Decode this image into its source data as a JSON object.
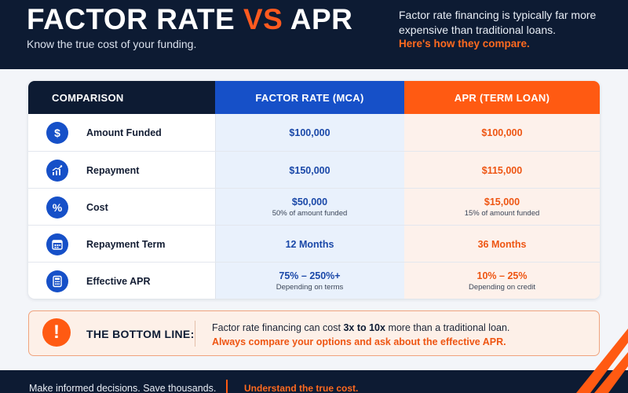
{
  "header": {
    "title_part1": "FACTOR RATE ",
    "title_vs": "VS",
    "title_part2": " APR",
    "subtitle": "Know the true cost of your funding.",
    "intro": "Factor rate financing is typically far more expensive than traditional loans.",
    "intro_accent": "Here's how they compare."
  },
  "table": {
    "headers": {
      "comparison": "COMPARISON",
      "factor_rate": "FACTOR RATE (MCA)",
      "apr": "APR (TERM LOAN)"
    },
    "rows": [
      {
        "icon": "dollar-icon",
        "label": "Amount Funded",
        "mca": "$100,000",
        "mca_note": "",
        "apr": "$100,000",
        "apr_note": ""
      },
      {
        "icon": "chart-growth-icon",
        "label": "Repayment",
        "mca": "$150,000",
        "mca_note": "",
        "apr": "$115,000",
        "apr_note": ""
      },
      {
        "icon": "percent-icon",
        "label": "Cost",
        "mca": "$50,000",
        "mca_note": "50% of amount funded",
        "apr": "$15,000",
        "apr_note": "15% of amount funded"
      },
      {
        "icon": "calendar-icon",
        "label": "Repayment Term",
        "mca": "12 Months",
        "mca_note": "",
        "apr": "36 Months",
        "apr_note": ""
      },
      {
        "icon": "calculator-icon",
        "label": "Effective APR",
        "mca": "75% – 250%+",
        "mca_note": "Depending on terms",
        "apr": "10% – 25%",
        "apr_note": "Depending on credit"
      }
    ]
  },
  "bottom_line": {
    "icon": "alert-icon",
    "label": "THE BOTTOM LINE:",
    "text_before": "Factor rate financing can cost ",
    "text_emphasis": "3x to 10x",
    "text_after": " more than a traditional loan.",
    "accent": "Always compare your options and ask about the effective APR."
  },
  "footer": {
    "left": "Make informed decisions. Save thousands.",
    "right": "Understand the true cost."
  },
  "colors": {
    "navy": "#0d1b33",
    "blue": "#1650c8",
    "orange": "#ff5a12"
  }
}
